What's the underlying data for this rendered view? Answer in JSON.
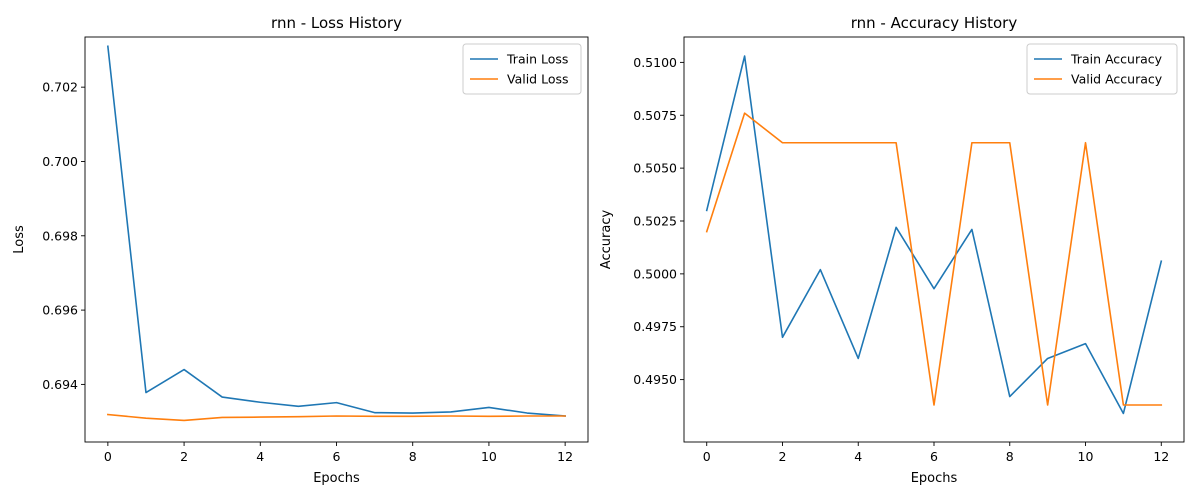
{
  "chart_data": [
    {
      "type": "line",
      "title": "rnn - Loss History",
      "xlabel": "Epochs",
      "ylabel": "Loss",
      "xlim": [
        -0.6,
        12.6
      ],
      "ylim": [
        0.69245,
        0.70335
      ],
      "xticks": [
        0,
        2,
        4,
        6,
        8,
        10,
        12
      ],
      "yticks": [
        0.694,
        0.696,
        0.698,
        0.7,
        0.702
      ],
      "ytick_labels": [
        "0.694",
        "0.696",
        "0.698",
        "0.700",
        "0.702"
      ],
      "grid": false,
      "legend_position": "top-right",
      "x": [
        0,
        1,
        2,
        3,
        4,
        5,
        6,
        7,
        8,
        9,
        10,
        11,
        12
      ],
      "series": [
        {
          "name": "Train Loss",
          "color": "#1f77b4",
          "values": [
            0.7031,
            0.69378,
            0.6944,
            0.69366,
            0.69352,
            0.69341,
            0.69351,
            0.69324,
            0.69323,
            0.69326,
            0.69338,
            0.69323,
            0.69315
          ]
        },
        {
          "name": "Valid Loss",
          "color": "#ff7f0e",
          "values": [
            0.69319,
            0.69309,
            0.69303,
            0.69311,
            0.69312,
            0.69313,
            0.69315,
            0.69314,
            0.69314,
            0.69315,
            0.69314,
            0.69315,
            0.69315
          ]
        }
      ]
    },
    {
      "type": "line",
      "title": "rnn - Accuracy History",
      "xlabel": "Epochs",
      "ylabel": "Accuracy",
      "xlim": [
        -0.6,
        12.6
      ],
      "ylim": [
        0.49205,
        0.5112
      ],
      "xticks": [
        0,
        2,
        4,
        6,
        8,
        10,
        12
      ],
      "yticks": [
        0.495,
        0.4975,
        0.5,
        0.5025,
        0.505,
        0.5075,
        0.51
      ],
      "ytick_labels": [
        "0.4950",
        "0.4975",
        "0.5000",
        "0.5025",
        "0.5050",
        "0.5075",
        "0.5100"
      ],
      "grid": false,
      "legend_position": "top-right",
      "x": [
        0,
        1,
        2,
        3,
        4,
        5,
        6,
        7,
        8,
        9,
        10,
        11,
        12
      ],
      "series": [
        {
          "name": "Train Accuracy",
          "color": "#1f77b4",
          "values": [
            0.503,
            0.5103,
            0.497,
            0.5002,
            0.496,
            0.5022,
            0.4993,
            0.5021,
            0.4942,
            0.496,
            0.4967,
            0.4934,
            0.5006
          ]
        },
        {
          "name": "Valid Accuracy",
          "color": "#ff7f0e",
          "values": [
            0.502,
            0.5076,
            0.5062,
            0.5062,
            0.5062,
            0.5062,
            0.4938,
            0.5062,
            0.5062,
            0.4938,
            0.5062,
            0.4938,
            0.4938
          ]
        }
      ]
    }
  ]
}
